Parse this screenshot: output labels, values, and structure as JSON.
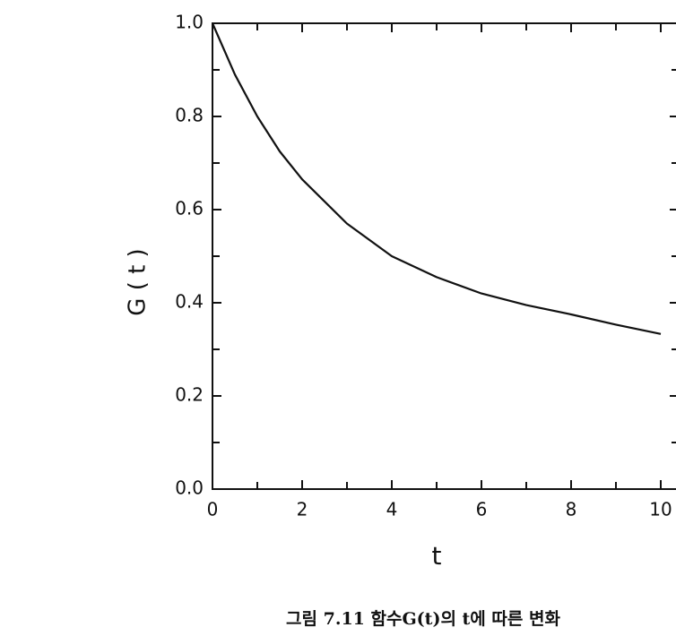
{
  "chart_data": {
    "type": "line",
    "ylabel": "G ( t )",
    "xlabel": "t",
    "caption": "그림 7.11  함수G(t)의 t에 따른 변화",
    "x": [
      0,
      0.5,
      1,
      1.5,
      2,
      3,
      4,
      5,
      6,
      7,
      8,
      9,
      10
    ],
    "values": [
      1.0,
      0.89,
      0.8,
      0.725,
      0.665,
      0.57,
      0.5,
      0.455,
      0.42,
      0.395,
      0.375,
      0.353,
      0.333
    ],
    "color": "#111111",
    "xlim": [
      0,
      10.4
    ],
    "ylim": [
      0,
      1
    ],
    "xticks": [
      0,
      2,
      4,
      6,
      8,
      10
    ],
    "xminor_ticks": [
      1,
      3,
      5,
      7,
      9
    ],
    "yticks": [
      {
        "value": 0,
        "label": "0.0"
      },
      0.2,
      0.4,
      0.6,
      0.8,
      {
        "value": 1,
        "label": "1.0"
      }
    ],
    "yminor_ticks": [
      0.1,
      0.3,
      0.5,
      0.7,
      0.9
    ],
    "grid": false
  }
}
